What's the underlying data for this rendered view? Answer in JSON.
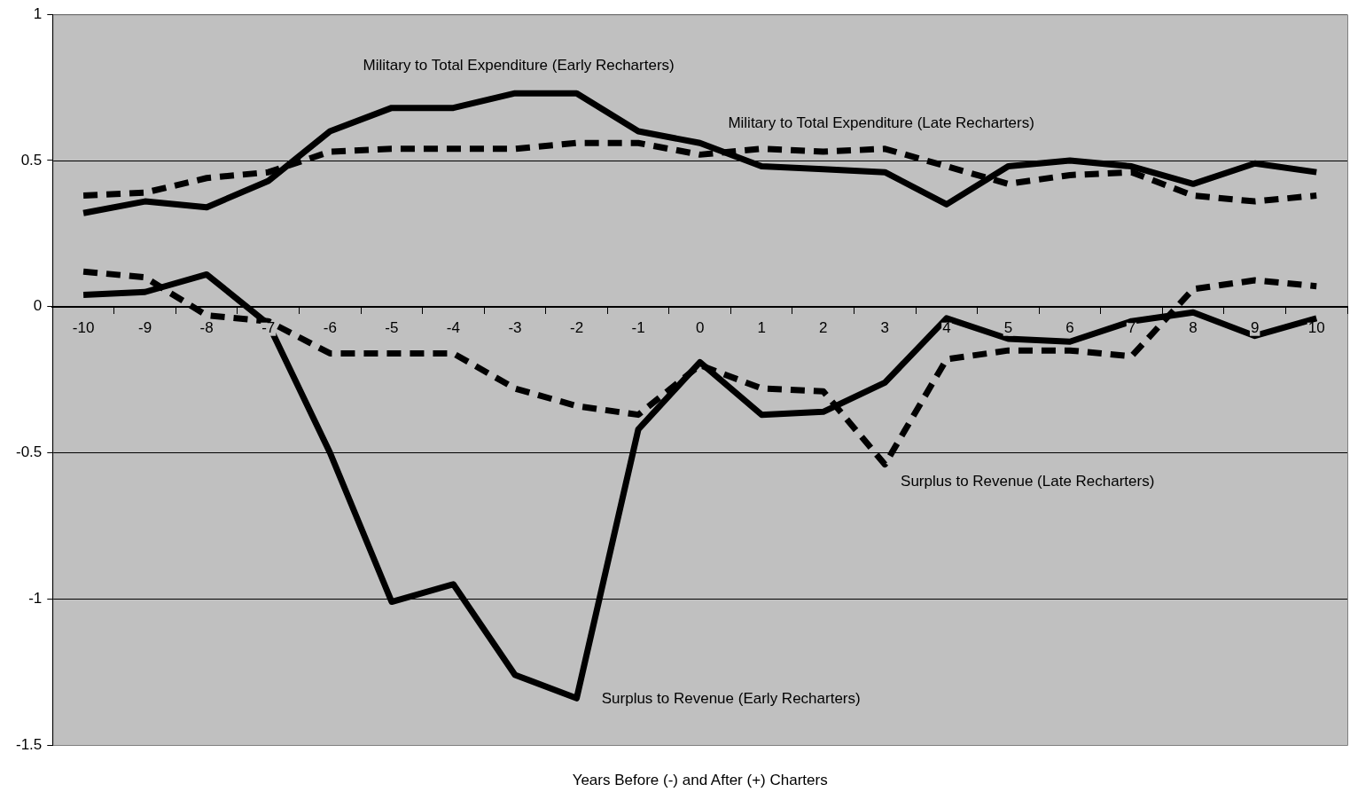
{
  "chart_data": {
    "type": "line",
    "xlabel": "Years Before (-) and After (+) Charters",
    "categories": [
      "-10",
      "-9",
      "-8",
      "-7",
      "-6",
      "-5",
      "-4",
      "-3",
      "-2",
      "-1",
      "0",
      "1",
      "2",
      "3",
      "4",
      "5",
      "6",
      "7",
      "8",
      "9",
      "10"
    ],
    "series": [
      {
        "name": "Military to Total Expenditure (Early Recharters)",
        "color": "#000000",
        "line_style": "solid",
        "values": [
          0.32,
          0.36,
          0.34,
          0.43,
          0.6,
          0.68,
          0.68,
          0.73,
          0.73,
          0.6,
          0.56,
          0.48,
          0.47,
          0.46,
          0.35,
          0.48,
          0.5,
          0.48,
          0.42,
          0.49,
          0.46
        ]
      },
      {
        "name": "Military to Total Expenditure (Late Recharters)",
        "color": "#000000",
        "line_style": "dashed",
        "values": [
          0.38,
          0.39,
          0.44,
          0.46,
          0.53,
          0.54,
          0.54,
          0.54,
          0.56,
          0.56,
          0.52,
          0.54,
          0.53,
          0.54,
          0.48,
          0.42,
          0.45,
          0.46,
          0.38,
          0.36,
          0.38
        ]
      },
      {
        "name": "Surplus to Revenue (Early Recharters)",
        "color": "#000000",
        "line_style": "solid",
        "values": [
          0.04,
          0.05,
          0.11,
          -0.06,
          -0.5,
          -1.01,
          -0.95,
          -1.26,
          -1.34,
          -0.42,
          -0.19,
          -0.37,
          -0.36,
          -0.26,
          -0.04,
          -0.11,
          -0.12,
          -0.05,
          -0.02,
          -0.1,
          -0.04
        ]
      },
      {
        "name": "Surplus to Revenue (Late Recharters)",
        "color": "#000000",
        "line_style": "dashed",
        "values": [
          0.12,
          0.1,
          -0.03,
          -0.05,
          -0.16,
          -0.16,
          -0.16,
          -0.28,
          -0.34,
          -0.37,
          -0.2,
          -0.28,
          -0.29,
          -0.54,
          -0.18,
          -0.15,
          -0.15,
          -0.17,
          0.06,
          0.09,
          0.07
        ]
      }
    ],
    "ylim": [
      -1.5,
      1
    ],
    "yticks": [
      -1.5,
      -1,
      -0.5,
      0,
      0.5,
      1
    ],
    "grid": "y",
    "marker": "none"
  }
}
